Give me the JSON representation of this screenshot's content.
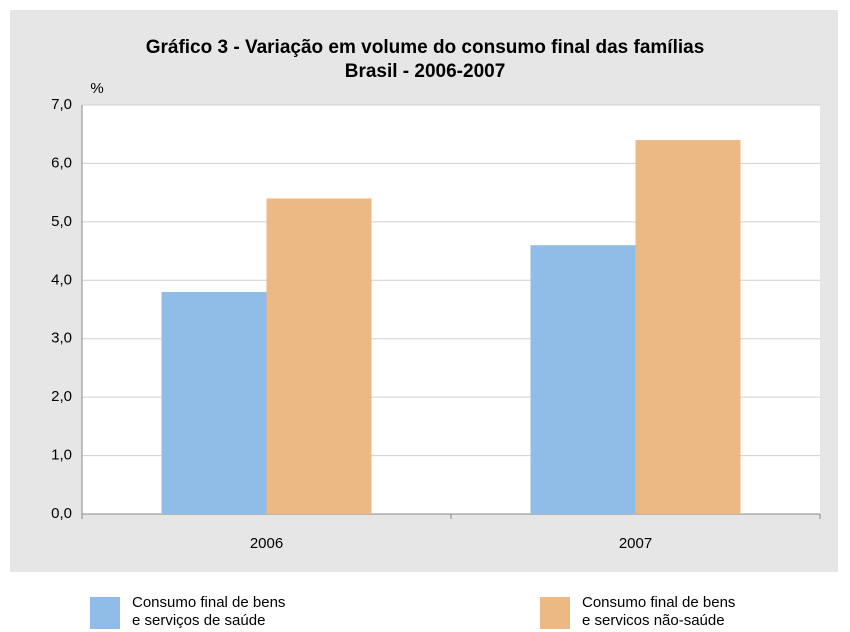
{
  "chart_data": {
    "type": "bar",
    "title": "Gráfico 3 - Variação em volume do consumo final das famílias",
    "subtitle": "Brasil - 2006-2007",
    "y_label": "%",
    "categories": [
      "2006",
      "2007"
    ],
    "series": [
      {
        "name": "Consumo final de bens\ne serviços de saúde",
        "color": "#8fbde8",
        "values": [
          3.8,
          4.6
        ]
      },
      {
        "name": "Consumo final de bens\ne servicos não-saúde",
        "color": "#ecb984",
        "values": [
          5.4,
          6.4
        ]
      }
    ],
    "ylim": [
      0,
      7
    ],
    "yticks": [
      {
        "value": 0,
        "label": "0,0"
      },
      {
        "value": 1,
        "label": "1,0"
      },
      {
        "value": 2,
        "label": "2,0"
      },
      {
        "value": 3,
        "label": "3,0"
      },
      {
        "value": 4,
        "label": "4,0"
      },
      {
        "value": 5,
        "label": "5,0"
      },
      {
        "value": 6,
        "label": "6,0"
      },
      {
        "value": 7,
        "label": "7,0"
      }
    ],
    "grid": true
  }
}
